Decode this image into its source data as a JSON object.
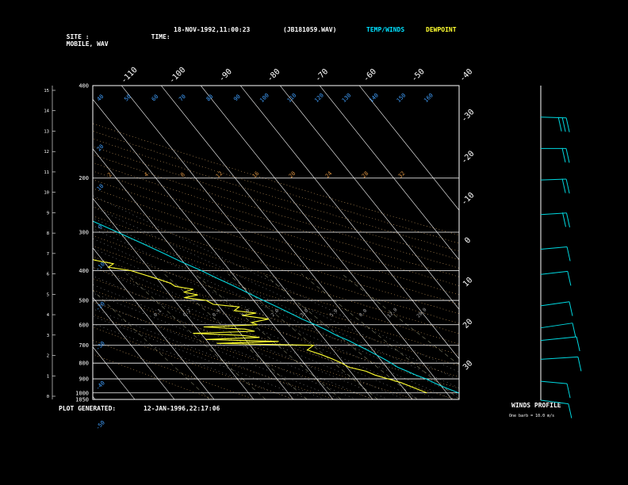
{
  "header": {
    "site_label": "SITE :",
    "site_value": "MOBILE, WAV",
    "time_label": "TIME:",
    "time_value": "18-NOV-1992,11:00:23",
    "file_value": "(JB181059.WAV)",
    "temp_winds_label": "TEMP/WINDS",
    "dewpoint_label": "DEWPOINT"
  },
  "footer": {
    "generated_label": "PLOT GENERATED:",
    "generated_value": "12-JAN-1996,22:17:06",
    "winds_title": "WINDS PROFILE",
    "winds_note": "One barb = 10.0 m/s"
  },
  "colors": {
    "background": "#000000",
    "grid": "#ffffff",
    "temp": "#00d8e0",
    "dewpoint": "#ffff30",
    "dry_adiabat": "#d0a060",
    "moist_adiabat": "#c0c0c0",
    "mixing_ratio": "#c8c8a0",
    "label_cyan": "#40a0ff",
    "label_orange": "#d89040"
  },
  "chart_data": {
    "type": "line",
    "kind": "skew-t log-p",
    "pressure_ticks": [
      400,
      200,
      300,
      400,
      500,
      600,
      700,
      800,
      900,
      1000,
      1050
    ],
    "pressure_labels": [
      "400",
      "200",
      "300",
      "400",
      "500",
      "600",
      "700",
      "800",
      "900",
      "1000",
      "1050"
    ],
    "height_ticks": [
      "15",
      "14",
      "13",
      "12",
      "11",
      "10",
      "9",
      "8",
      "7",
      "6",
      "5",
      "4",
      "3",
      "2",
      "1",
      "0"
    ],
    "top_temp_labels": [
      "-110",
      "-100",
      "-90",
      "-80",
      "-70",
      "-60",
      "-50",
      "-40"
    ],
    "right_temp_labels": [
      "-30",
      "-20",
      "-10",
      "0",
      "10",
      "20",
      "30"
    ],
    "theta_labels_top": [
      "40",
      "50",
      "60",
      "70",
      "80",
      "90",
      "100",
      "110",
      "120",
      "130",
      "140",
      "150",
      "160"
    ],
    "theta_labels_left": [
      "20",
      "10",
      "0",
      "-10",
      "-20",
      "-30",
      "-40",
      "-50"
    ],
    "mixing_ratio_labels": [
      "2",
      "4",
      "8",
      "12",
      "16",
      "20",
      "24",
      "28",
      "32"
    ],
    "moist_labels": [
      "0.1",
      "0.2",
      "0.4",
      "1.0",
      "2.0",
      "3.0",
      "5.0",
      "8.0",
      "12.0",
      "20.0"
    ],
    "series": [
      {
        "name": "TEMP/WINDS",
        "points": [
          [
            1000,
            23.0
          ],
          [
            975,
            21.5
          ],
          [
            950,
            20.0
          ],
          [
            925,
            18.8
          ],
          [
            900,
            17.6
          ],
          [
            875,
            15.8
          ],
          [
            850,
            14.4
          ],
          [
            825,
            12.8
          ],
          [
            800,
            12.0
          ],
          [
            775,
            11.0
          ],
          [
            750,
            9.8
          ],
          [
            725,
            8.6
          ],
          [
            700,
            7.2
          ],
          [
            675,
            5.8
          ],
          [
            650,
            3.8
          ],
          [
            625,
            2.4
          ],
          [
            600,
            0.6
          ],
          [
            575,
            -1.6
          ],
          [
            550,
            -3.4
          ],
          [
            525,
            -5.4
          ],
          [
            500,
            -7.6
          ],
          [
            475,
            -9.8
          ],
          [
            450,
            -12.0
          ],
          [
            425,
            -14.6
          ],
          [
            400,
            -17.2
          ],
          [
            375,
            -20.4
          ],
          [
            350,
            -23.4
          ],
          [
            325,
            -26.8
          ],
          [
            300,
            -30.6
          ],
          [
            275,
            -34.8
          ],
          [
            250,
            -39.6
          ],
          [
            225,
            -44.8
          ],
          [
            200,
            -50.6
          ],
          [
            187,
            -53.6
          ],
          [
            175,
            -57.0
          ],
          [
            162,
            -60.0
          ],
          [
            150,
            -62.0
          ],
          [
            140,
            -61.5
          ],
          [
            130,
            -62.5
          ],
          [
            120,
            -62.0
          ],
          [
            110,
            -63.5
          ],
          [
            100,
            -64.0
          ]
        ]
      },
      {
        "name": "DEWPOINT",
        "points": [
          [
            1000,
            15.0
          ],
          [
            975,
            13.5
          ],
          [
            950,
            12.0
          ],
          [
            925,
            10.5
          ],
          [
            900,
            8.0
          ],
          [
            875,
            5.5
          ],
          [
            850,
            4.0
          ],
          [
            825,
            0.5
          ],
          [
            800,
            -0.5
          ],
          [
            775,
            -2.0
          ],
          [
            750,
            -4.0
          ],
          [
            725,
            -6.5
          ],
          [
            700,
            -4.0
          ],
          [
            690,
            -28.0
          ],
          [
            680,
            -12.0
          ],
          [
            670,
            -30.0
          ],
          [
            660,
            -16.0
          ],
          [
            650,
            -20.0
          ],
          [
            640,
            -32.0
          ],
          [
            630,
            -16.0
          ],
          [
            620,
            -18.0
          ],
          [
            610,
            -28.0
          ],
          [
            600,
            -14.0
          ],
          [
            590,
            -15.0
          ],
          [
            575,
            -10.0
          ],
          [
            560,
            -16.0
          ],
          [
            550,
            -12.0
          ],
          [
            540,
            -17.0
          ],
          [
            525,
            -15.0
          ],
          [
            515,
            -21.0
          ],
          [
            500,
            -22.0
          ],
          [
            490,
            -27.0
          ],
          [
            480,
            -23.0
          ],
          [
            470,
            -26.0
          ],
          [
            460,
            -23.0
          ],
          [
            450,
            -27.0
          ],
          [
            440,
            -27.5
          ],
          [
            425,
            -30.0
          ],
          [
            400,
            -35.0
          ],
          [
            390,
            -40.0
          ],
          [
            380,
            -38.0
          ],
          [
            370,
            -42.0
          ],
          [
            360,
            -44.0
          ],
          [
            350,
            -46.0
          ],
          [
            330,
            -46.5
          ],
          [
            320,
            -48.0
          ],
          [
            300,
            -46.0
          ],
          [
            280,
            -50.0
          ],
          [
            250,
            -54.0
          ],
          [
            225,
            -60.0
          ],
          [
            200,
            -66.0
          ],
          [
            175,
            -70.0
          ],
          [
            160,
            -73.0
          ],
          [
            140,
            -74.0
          ],
          [
            125,
            -75.0
          ],
          [
            100,
            -76.5
          ]
        ]
      }
    ],
    "winds": [
      {
        "y": 0.1,
        "speed": 25,
        "dir": 280
      },
      {
        "y": 0.2,
        "speed": 20,
        "dir": 270
      },
      {
        "y": 0.3,
        "speed": 20,
        "dir": 260
      },
      {
        "y": 0.41,
        "speed": 15,
        "dir": 250
      },
      {
        "y": 0.52,
        "speed": 12,
        "dir": 240
      },
      {
        "y": 0.6,
        "speed": 10,
        "dir": 230
      },
      {
        "y": 0.7,
        "speed": 8,
        "dir": 210
      },
      {
        "y": 0.77,
        "speed": 10,
        "dir": 180
      },
      {
        "y": 0.81,
        "speed": 8,
        "dir": 140
      },
      {
        "y": 0.87,
        "speed": 5,
        "dir": 120
      },
      {
        "y": 0.94,
        "speed": 5,
        "dir": 300
      },
      {
        "y": 1.0,
        "speed": 5,
        "dir": 320
      }
    ]
  }
}
